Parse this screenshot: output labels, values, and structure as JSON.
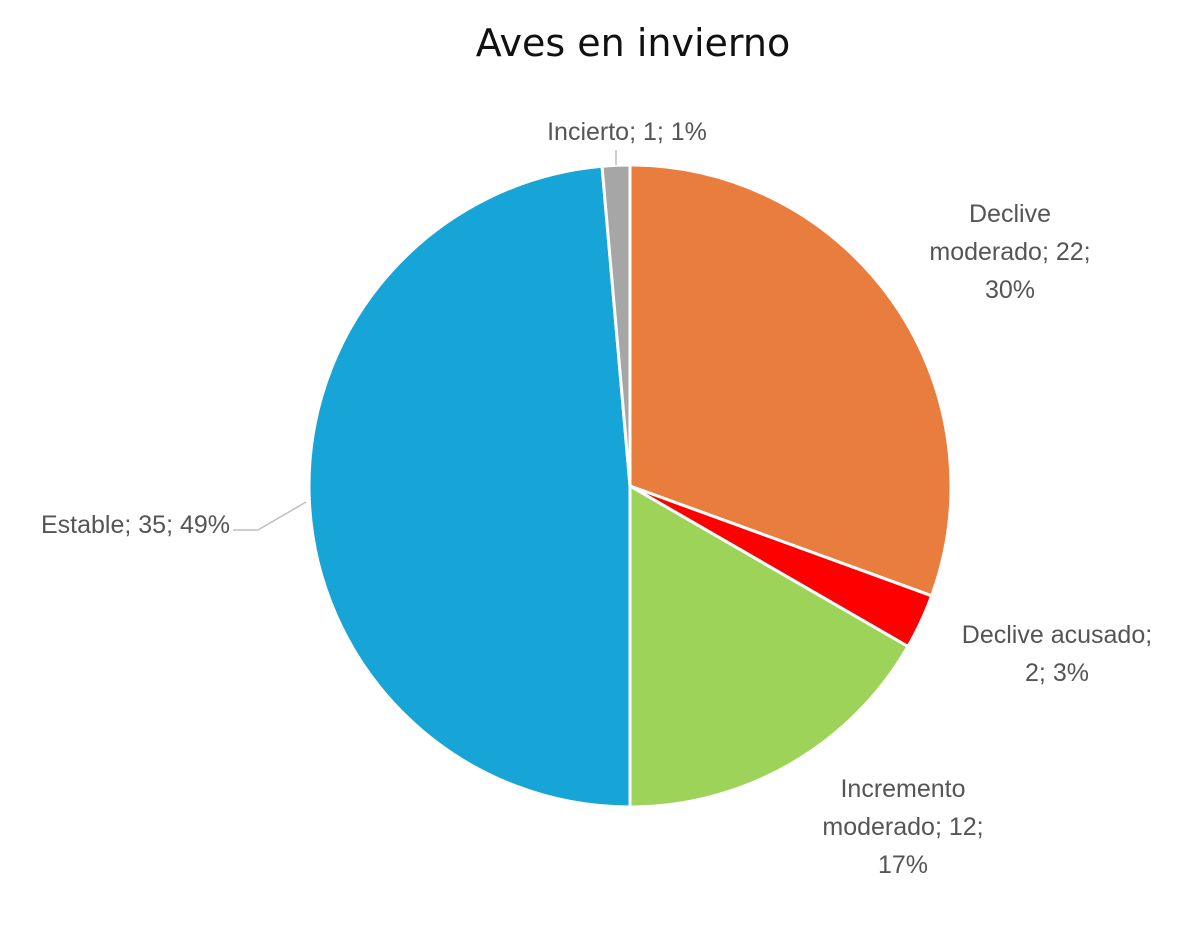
{
  "chart_data": {
    "type": "pie",
    "title": "Aves en invierno",
    "slices": [
      {
        "name": "Declive moderado",
        "value": 22,
        "percent": "30%",
        "color": "#E87D3E",
        "label_lines": [
          "Declive",
          "moderado; 22;",
          "30%"
        ]
      },
      {
        "name": "Declive acusado",
        "value": 2,
        "percent": "3%",
        "color": "#FF0000",
        "label_lines": [
          "Declive acusado;",
          "2; 3%"
        ]
      },
      {
        "name": "Incremento moderado",
        "value": 12,
        "percent": "17%",
        "color": "#9ED35A",
        "label_lines": [
          "Incremento",
          "moderado; 12;",
          "17%"
        ]
      },
      {
        "name": "Estable",
        "value": 35,
        "percent": "49%",
        "color": "#17A5D8",
        "label_lines": [
          "Estable; 35; 49%"
        ]
      },
      {
        "name": "Incierto",
        "value": 1,
        "percent": "1%",
        "color": "#A6A6A6",
        "label_lines": [
          "Incierto; 1; 1%"
        ]
      }
    ]
  }
}
